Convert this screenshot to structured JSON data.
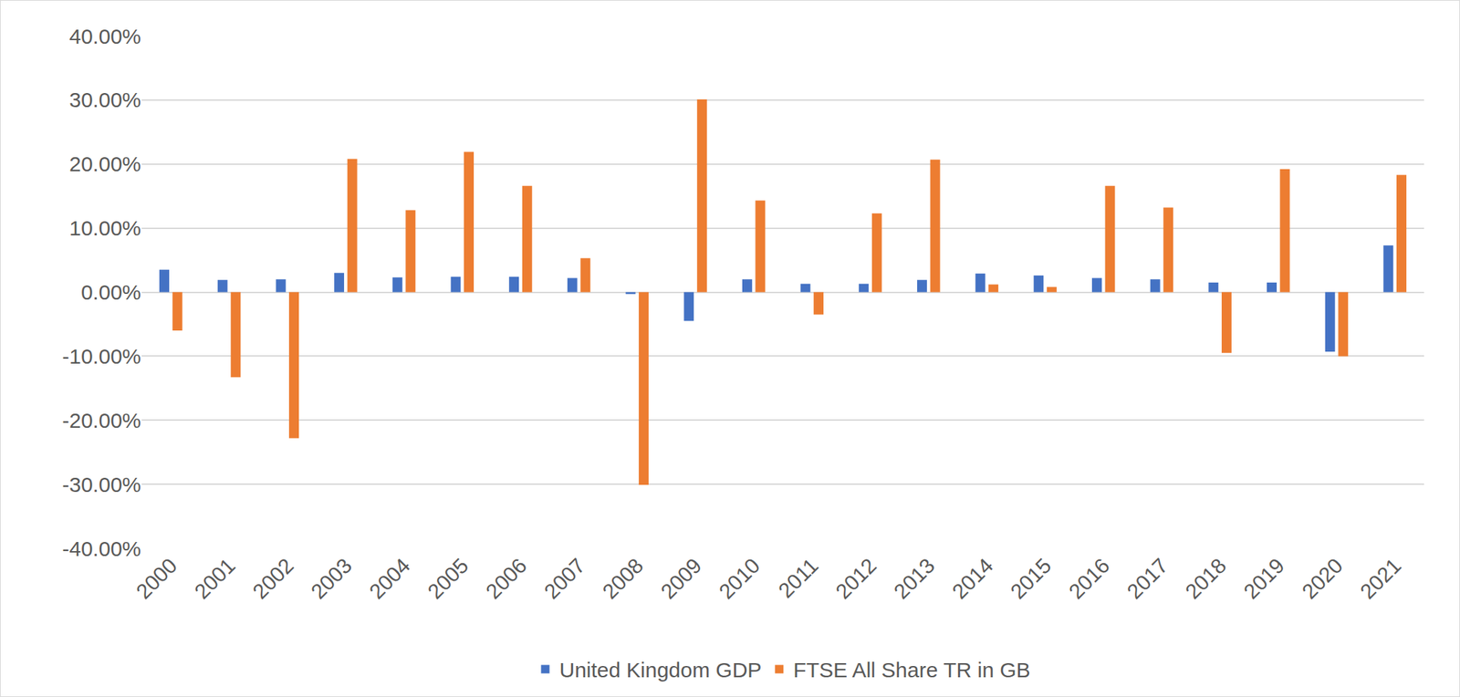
{
  "chart_data": {
    "type": "bar",
    "categories": [
      "2000",
      "2001",
      "2002",
      "2003",
      "2004",
      "2005",
      "2006",
      "2007",
      "2008",
      "2009",
      "2010",
      "2011",
      "2012",
      "2013",
      "2014",
      "2015",
      "2016",
      "2017",
      "2018",
      "2019",
      "2020",
      "2021"
    ],
    "series": [
      {
        "name": "United Kingdom GDP",
        "color": "#4472c4",
        "values": [
          3.5,
          1.9,
          2.0,
          3.0,
          2.3,
          2.4,
          2.4,
          2.2,
          -0.3,
          -4.5,
          2.0,
          1.3,
          1.3,
          1.9,
          2.9,
          2.6,
          2.2,
          2.0,
          1.5,
          1.5,
          -9.3,
          7.3
        ]
      },
      {
        "name": "FTSE All Share TR in GB",
        "color": "#ed7d31",
        "values": [
          -6.0,
          -13.3,
          -22.8,
          20.8,
          12.8,
          21.9,
          16.6,
          5.3,
          -30.1,
          30.1,
          14.3,
          -3.5,
          12.3,
          20.7,
          1.2,
          0.8,
          16.6,
          13.2,
          -9.5,
          19.2,
          -10.0,
          18.3
        ]
      }
    ],
    "ylim": [
      -40,
      40
    ],
    "yticks": [
      {
        "value": -40,
        "label": "-40.00%"
      },
      {
        "value": -30,
        "label": "-30.00%"
      },
      {
        "value": -20,
        "label": "-20.00%"
      },
      {
        "value": -10,
        "label": "-10.00%"
      },
      {
        "value": 0,
        "label": "0.00%"
      },
      {
        "value": 10,
        "label": "10.00%"
      },
      {
        "value": 20,
        "label": "20.00%"
      },
      {
        "value": 30,
        "label": "30.00%"
      },
      {
        "value": 40,
        "label": "40.00%"
      }
    ],
    "grid": true,
    "legend": "bottom"
  }
}
